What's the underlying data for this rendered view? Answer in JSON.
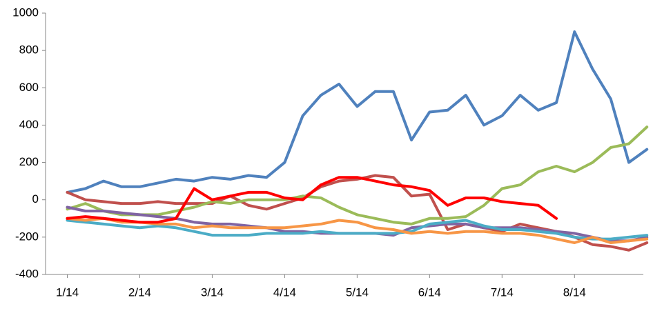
{
  "chart_data": {
    "type": "line",
    "x": [
      0,
      0.25,
      0.5,
      0.75,
      1,
      1.25,
      1.5,
      1.75,
      2,
      2.25,
      2.5,
      2.75,
      3,
      3.25,
      3.5,
      3.75,
      4,
      4.25,
      4.5,
      4.75,
      5,
      5.25,
      5.5,
      5.75,
      6,
      6.25,
      6.5,
      6.75,
      7,
      7.25,
      7.5,
      7.75,
      8
    ],
    "xlim": [
      -0.3,
      7.95
    ],
    "xticks": [
      {
        "value": 0,
        "label": "1/14"
      },
      {
        "value": 1,
        "label": "2/14"
      },
      {
        "value": 2,
        "label": "3/14"
      },
      {
        "value": 3,
        "label": "4/14"
      },
      {
        "value": 4,
        "label": "5/14"
      },
      {
        "value": 5,
        "label": "6/14"
      },
      {
        "value": 6,
        "label": "7/14"
      },
      {
        "value": 7,
        "label": "8/14"
      }
    ],
    "ylim": [
      -400,
      1000
    ],
    "yticks": [
      -400,
      -200,
      0,
      200,
      400,
      600,
      800,
      1000
    ],
    "series": [
      {
        "color": "#4F81BD",
        "values": [
          40,
          60,
          100,
          70,
          70,
          90,
          110,
          100,
          120,
          110,
          130,
          120,
          200,
          450,
          560,
          620,
          500,
          580,
          580,
          320,
          470,
          480,
          560,
          400,
          450,
          560,
          480,
          520,
          900,
          700,
          540,
          200,
          270
        ]
      },
      {
        "color": "#C0504D",
        "values": [
          40,
          0,
          -10,
          -20,
          -20,
          -10,
          -20,
          -20,
          -20,
          20,
          -30,
          -50,
          -20,
          10,
          70,
          100,
          110,
          130,
          120,
          20,
          30,
          -160,
          -130,
          -150,
          -170,
          -130,
          -150,
          -170,
          -200,
          -240,
          -250,
          -270,
          -230
        ]
      },
      {
        "color": "#9BBB59",
        "values": [
          -50,
          -20,
          -60,
          -80,
          -80,
          -80,
          -60,
          -40,
          -10,
          -20,
          0,
          0,
          0,
          20,
          10,
          -40,
          -80,
          -100,
          -120,
          -130,
          -100,
          -100,
          -90,
          -30,
          60,
          80,
          150,
          180,
          150,
          200,
          280,
          300,
          390
        ]
      },
      {
        "color": "#8064A2",
        "values": [
          -40,
          -60,
          -60,
          -70,
          -80,
          -90,
          -100,
          -120,
          -130,
          -130,
          -140,
          -150,
          -170,
          -170,
          -180,
          -180,
          -180,
          -180,
          -190,
          -150,
          -140,
          -130,
          -130,
          -150,
          -150,
          -150,
          -160,
          -170,
          -180,
          -200,
          -220,
          -220,
          -200
        ]
      },
      {
        "color": "#4BACC6",
        "values": [
          -110,
          -120,
          -130,
          -140,
          -150,
          -140,
          -150,
          -170,
          -190,
          -190,
          -190,
          -180,
          -180,
          -180,
          -170,
          -180,
          -180,
          -180,
          -180,
          -170,
          -130,
          -120,
          -110,
          -140,
          -160,
          -160,
          -170,
          -180,
          -200,
          -210,
          -210,
          -200,
          -190
        ]
      },
      {
        "color": "#F79646",
        "values": [
          -100,
          -110,
          -100,
          -120,
          -120,
          -130,
          -130,
          -150,
          -140,
          -150,
          -150,
          -150,
          -150,
          -140,
          -130,
          -110,
          -120,
          -150,
          -160,
          -180,
          -170,
          -180,
          -170,
          -170,
          -180,
          -180,
          -190,
          -210,
          -230,
          -200,
          -230,
          -220,
          -210
        ]
      },
      {
        "color": "#FF0000",
        "values": [
          -100,
          -90,
          -100,
          -110,
          -120,
          -120,
          -100,
          60,
          0,
          20,
          40,
          40,
          10,
          0,
          80,
          120,
          120,
          100,
          80,
          70,
          50,
          -30,
          10,
          10,
          -10,
          -20,
          -30,
          -100,
          null,
          null,
          null,
          null,
          null
        ]
      }
    ]
  }
}
